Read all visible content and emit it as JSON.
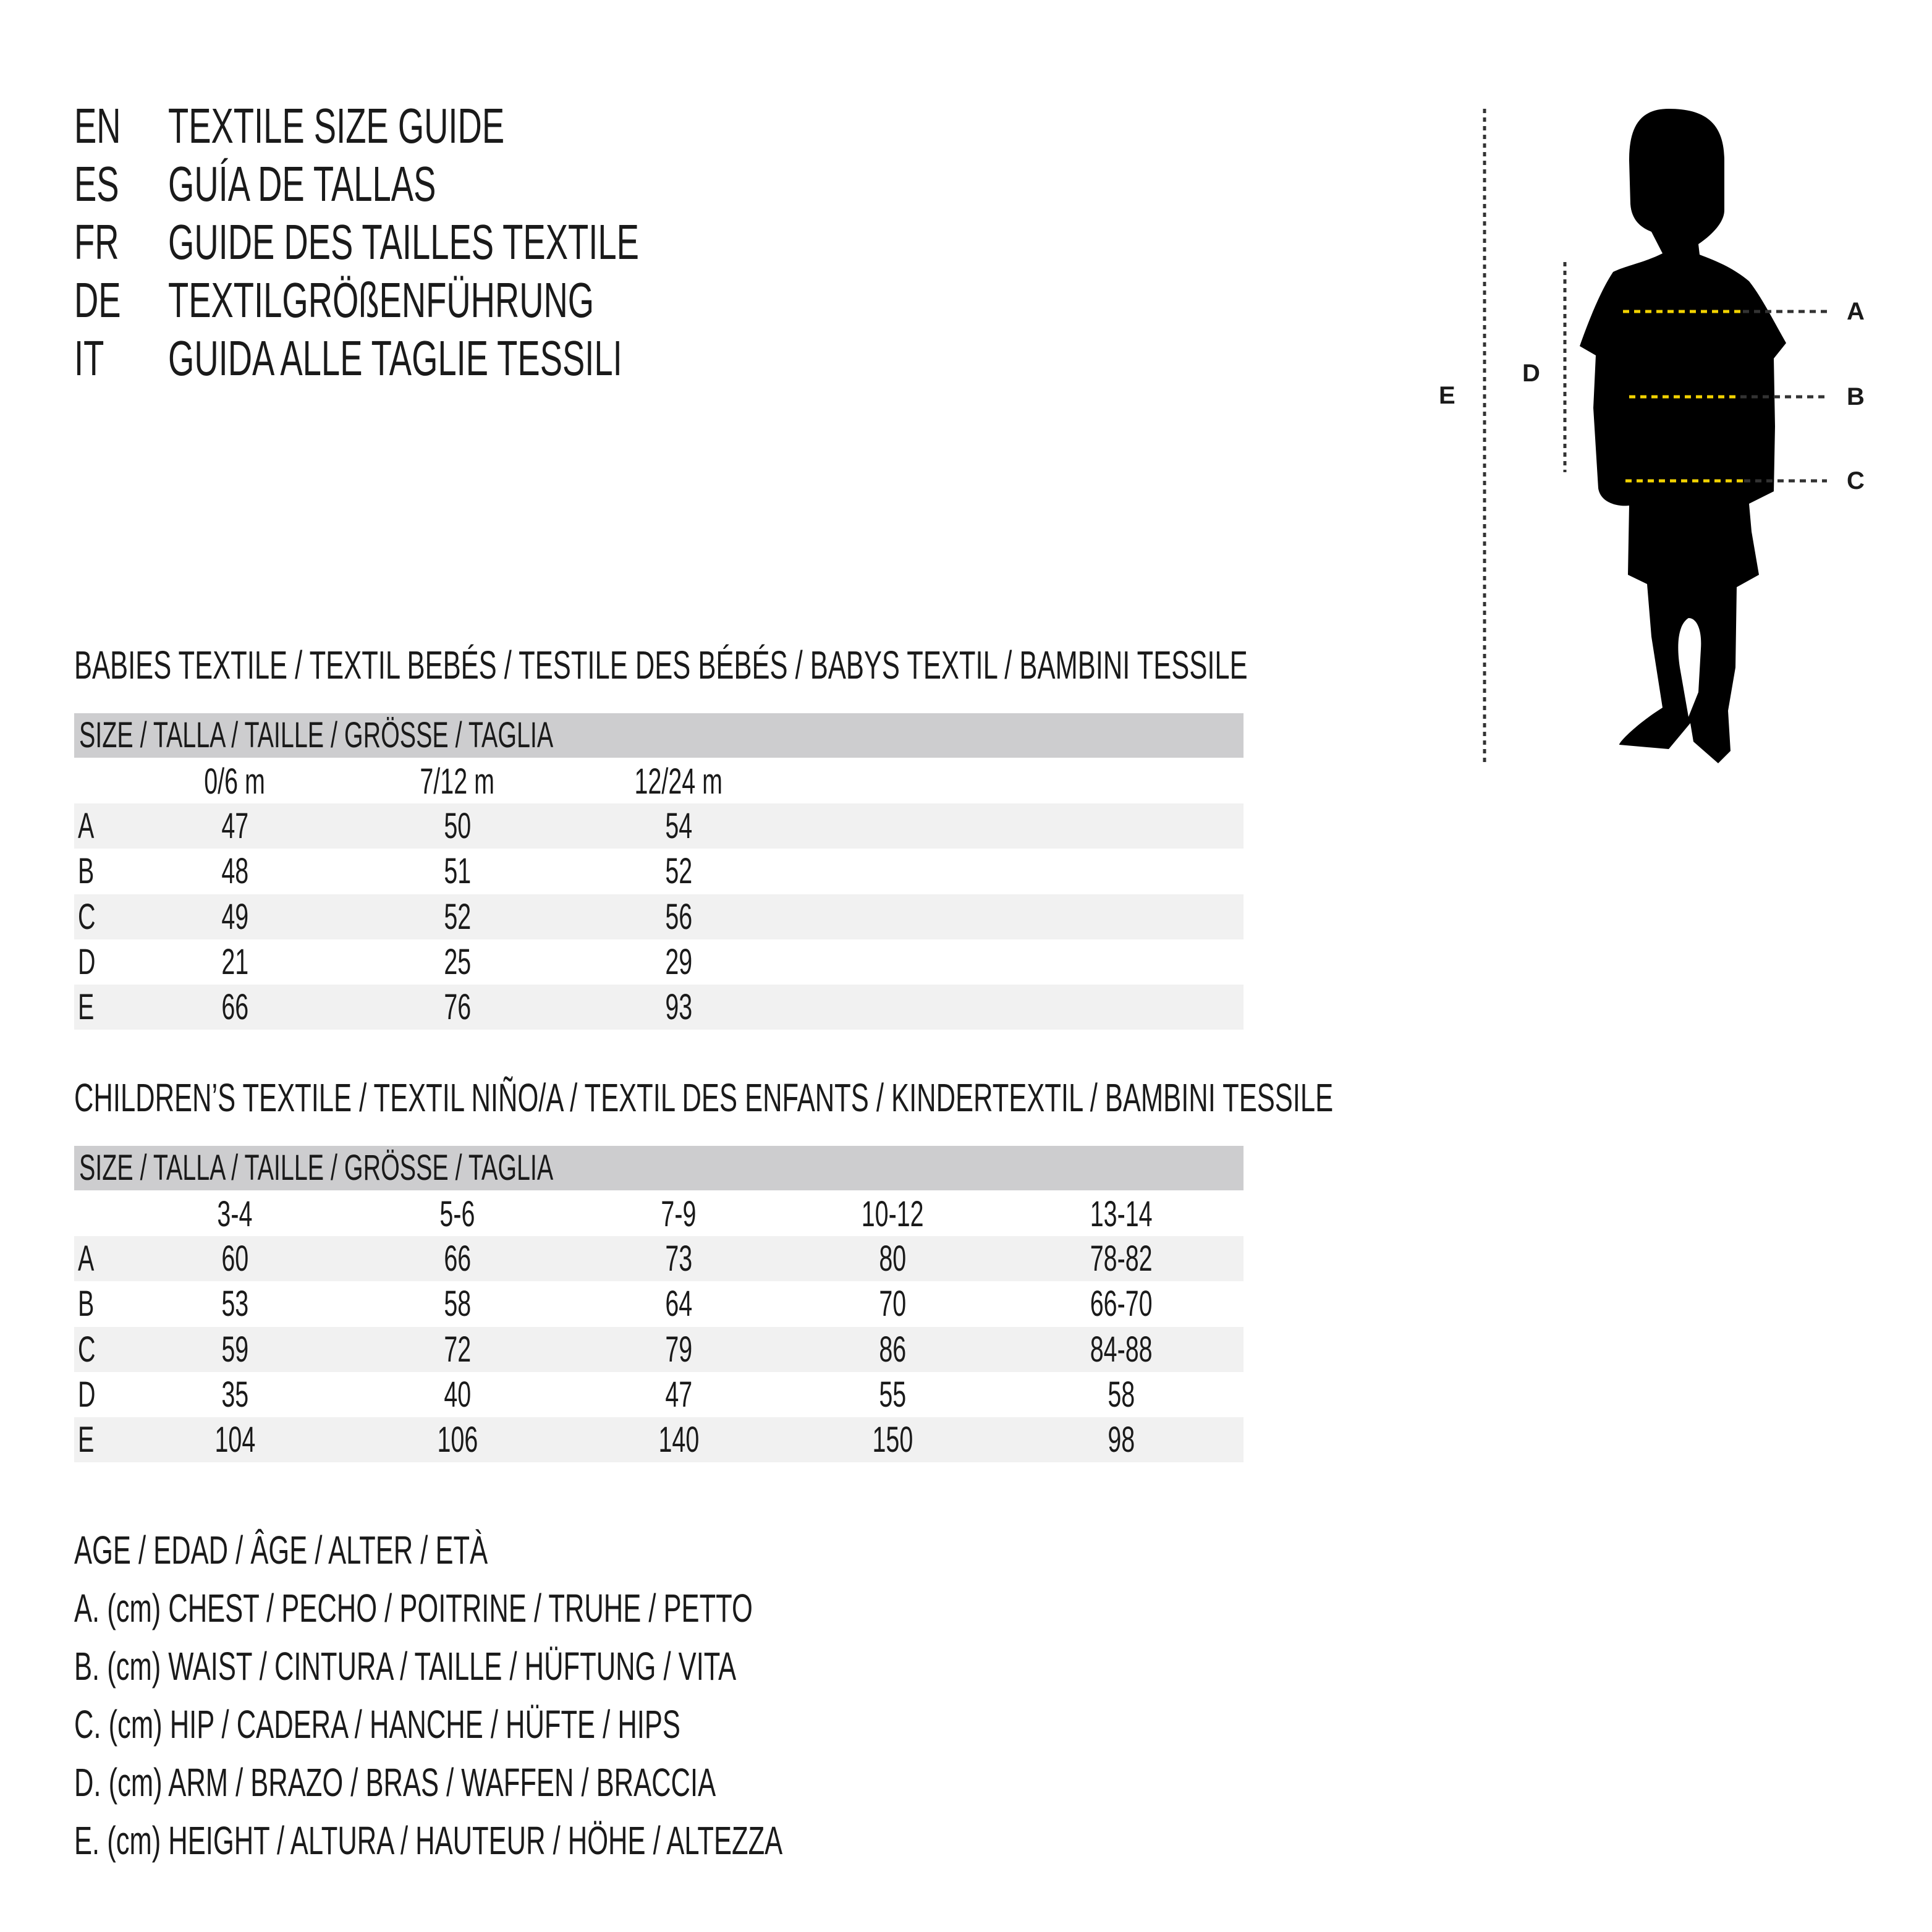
{
  "titles": [
    {
      "code": "EN",
      "text": "TEXTILE SIZE GUIDE"
    },
    {
      "code": "ES",
      "text": "GUÍA DE TALLAS"
    },
    {
      "code": "FR",
      "text": "GUIDE DES TAILLES TEXTILE"
    },
    {
      "code": "DE",
      "text": "TEXTILGRÖßENFÜHRUNG"
    },
    {
      "code": "IT",
      "text": "GUIDA ALLE TAGLIE TESSILI"
    }
  ],
  "figure": {
    "labels": {
      "A": "A",
      "B": "B",
      "C": "C",
      "D": "D",
      "E": "E"
    },
    "colors": {
      "measure_line": "#f2d200",
      "guide_line": "#333333",
      "silhouette": "#000000"
    },
    "icon": "child-silhouette-icon"
  },
  "babies": {
    "heading": "BABIES TEXTILE / TEXTIL BEBÉS / TESTILE DES BÉBÉS / BABYS TEXTIL / BAMBINI TESSILE",
    "size_header": "SIZE / TALLA / TAILLE / GRÖSSE / TAGLIA",
    "columns": [
      "0/6 m",
      "7/12 m",
      "12/24 m"
    ],
    "rows": [
      {
        "label": "A",
        "values": [
          "47",
          "50",
          "54"
        ]
      },
      {
        "label": "B",
        "values": [
          "48",
          "51",
          "52"
        ]
      },
      {
        "label": "C",
        "values": [
          "49",
          "52",
          "56"
        ]
      },
      {
        "label": "D",
        "values": [
          "21",
          "25",
          "29"
        ]
      },
      {
        "label": "E",
        "values": [
          "66",
          "76",
          "93"
        ]
      }
    ]
  },
  "children": {
    "heading": "CHILDREN’S TEXTILE / TEXTIL NIÑO/A / TEXTIL DES ENFANTS / KINDERTEXTIL / BAMBINI TESSILE",
    "size_header": "SIZE / TALLA / TAILLE / GRÖSSE / TAGLIA",
    "columns": [
      "3-4",
      "5-6",
      "7-9",
      "10-12",
      "13-14"
    ],
    "rows": [
      {
        "label": "A",
        "values": [
          "60",
          "66",
          "73",
          "80",
          "78-82"
        ]
      },
      {
        "label": "B",
        "values": [
          "53",
          "58",
          "64",
          "70",
          "66-70"
        ]
      },
      {
        "label": "C",
        "values": [
          "59",
          "72",
          "79",
          "86",
          "84-88"
        ]
      },
      {
        "label": "D",
        "values": [
          "35",
          "40",
          "47",
          "55",
          "58"
        ]
      },
      {
        "label": "E",
        "values": [
          "104",
          "106",
          "140",
          "150",
          "98"
        ]
      }
    ]
  },
  "legend": [
    "AGE / EDAD / ÂGE / ALTER / ETÀ",
    "A. (cm) CHEST / PECHO / POITRINE / TRUHE / PETTO",
    "B. (cm) WAIST / CINTURA / TAILLE / HÜFTUNG / VITA",
    "C. (cm) HIP / CADERA / HANCHE / HÜFTE / HIPS",
    "D. (cm) ARM / BRAZO / BRAS / WAFFEN / BRACCIA",
    "E. (cm) HEIGHT / ALTURA / HAUTEUR / HÖHE / ALTEZZA"
  ]
}
